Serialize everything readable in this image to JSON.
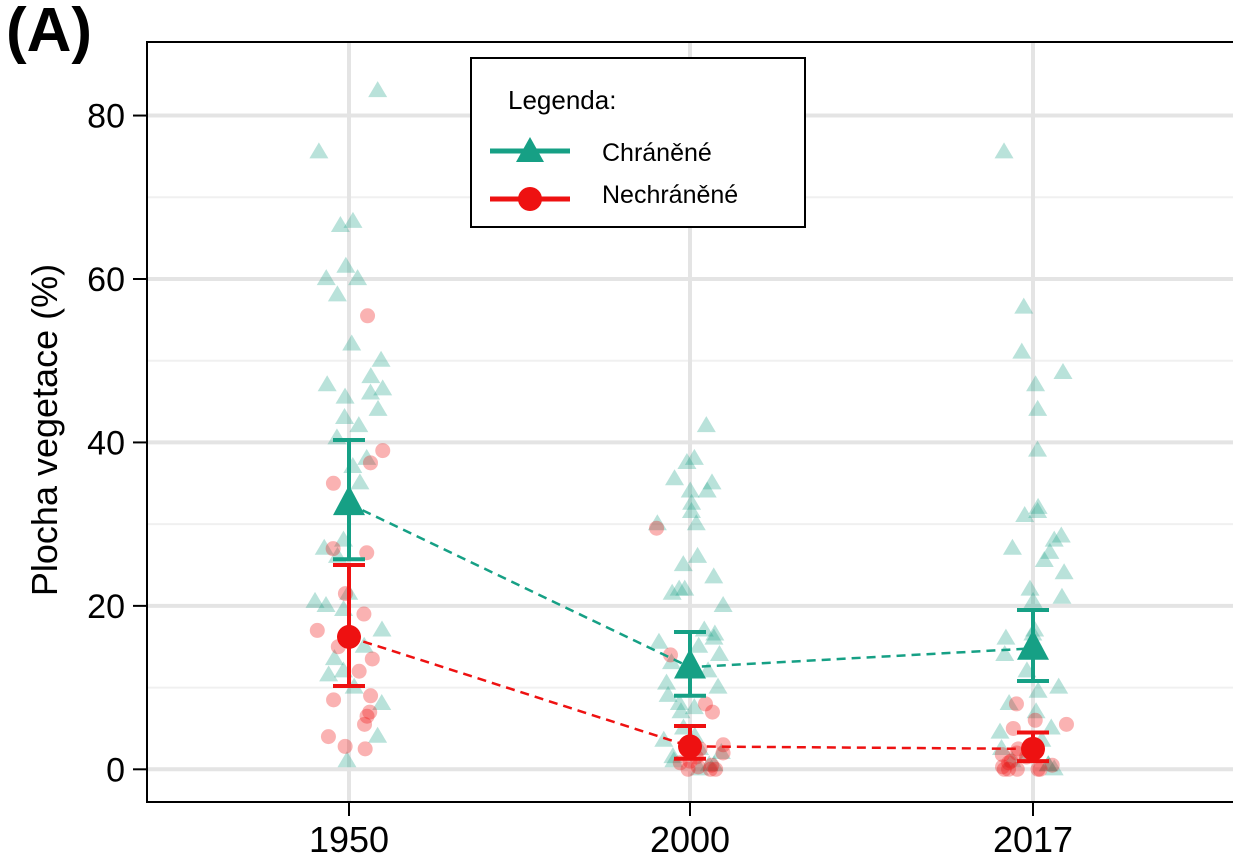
{
  "panel_label": "(A)",
  "legend": {
    "title": "Legenda:",
    "items": [
      {
        "label": "Chráněné",
        "color": "#16a085",
        "marker": "triangle"
      },
      {
        "label": "Nechráněné",
        "color": "#ee1111",
        "marker": "circle"
      }
    ]
  },
  "chart_data": {
    "type": "scatter",
    "title": "",
    "xlabel": "",
    "ylabel": "Plocha vegetace (%)",
    "categories": [
      "1950",
      "2000",
      "2017"
    ],
    "ylim": [
      -4,
      89
    ],
    "yticks": [
      0,
      20,
      40,
      60,
      80
    ],
    "grid": true,
    "legend_position": "top-center",
    "series": [
      {
        "name": "Chráněné",
        "color": "#16a085",
        "marker": "triangle",
        "mean": [
          32.5,
          12.5,
          14.8
        ],
        "error_low": [
          25.7,
          9.0,
          10.8
        ],
        "error_high": [
          40.3,
          16.8,
          19.5
        ],
        "points": [
          [
            83,
            75.5,
            67,
            66.5,
            61.5,
            60,
            60,
            58,
            52,
            50,
            48,
            47,
            46.5,
            46,
            45.5,
            44,
            43,
            42,
            40.5,
            38,
            37,
            35,
            28,
            27,
            26,
            21.5,
            20.5,
            20,
            19.5,
            17,
            15,
            13.5,
            12,
            11.5,
            10,
            8,
            4,
            1
          ],
          [
            42,
            38,
            37.5,
            35.5,
            35,
            34,
            34,
            32.5,
            31.5,
            30,
            30,
            26,
            25,
            23.5,
            22,
            22,
            21.5,
            20,
            17,
            16.5,
            16,
            15.5,
            15,
            14,
            13,
            12,
            10.5,
            10,
            9,
            8,
            7.5,
            7,
            5,
            4,
            3.5,
            2.5,
            2,
            1.5,
            1,
            0.5,
            0.5,
            0
          ],
          [
            75.5,
            56.5,
            51,
            48.5,
            47,
            44,
            39,
            32,
            31.5,
            31,
            28.5,
            28,
            27,
            26.5,
            25.5,
            24,
            22,
            21,
            20.5,
            17,
            16.5,
            16,
            14,
            12,
            10,
            9.5,
            8,
            7,
            5,
            4.5,
            3.5,
            2.5,
            1.5,
            1,
            0.5,
            0.5,
            0
          ]
        ]
      },
      {
        "name": "Nechráněné",
        "color": "#ee1111",
        "marker": "circle",
        "mean": [
          16.2,
          2.8,
          2.5
        ],
        "error_low": [
          10.2,
          1.3,
          1.0
        ],
        "error_high": [
          25.0,
          5.3,
          4.5
        ],
        "points": [
          [
            55.5,
            39,
            37.5,
            35,
            27,
            26.5,
            21.5,
            19,
            17,
            15,
            13.5,
            12,
            9,
            8.5,
            7,
            6.5,
            5.5,
            4,
            2.8,
            2.5
          ],
          [
            29.5,
            14,
            8,
            7,
            3,
            2.5,
            2.5,
            2,
            1.5,
            1,
            0.8,
            0.5,
            0.3,
            0,
            0,
            0
          ],
          [
            8,
            6,
            5.5,
            5,
            2.5,
            2,
            1.8,
            1.5,
            1,
            0.8,
            0.5,
            0.3,
            0,
            0,
            0,
            0,
            0
          ]
        ]
      }
    ]
  }
}
